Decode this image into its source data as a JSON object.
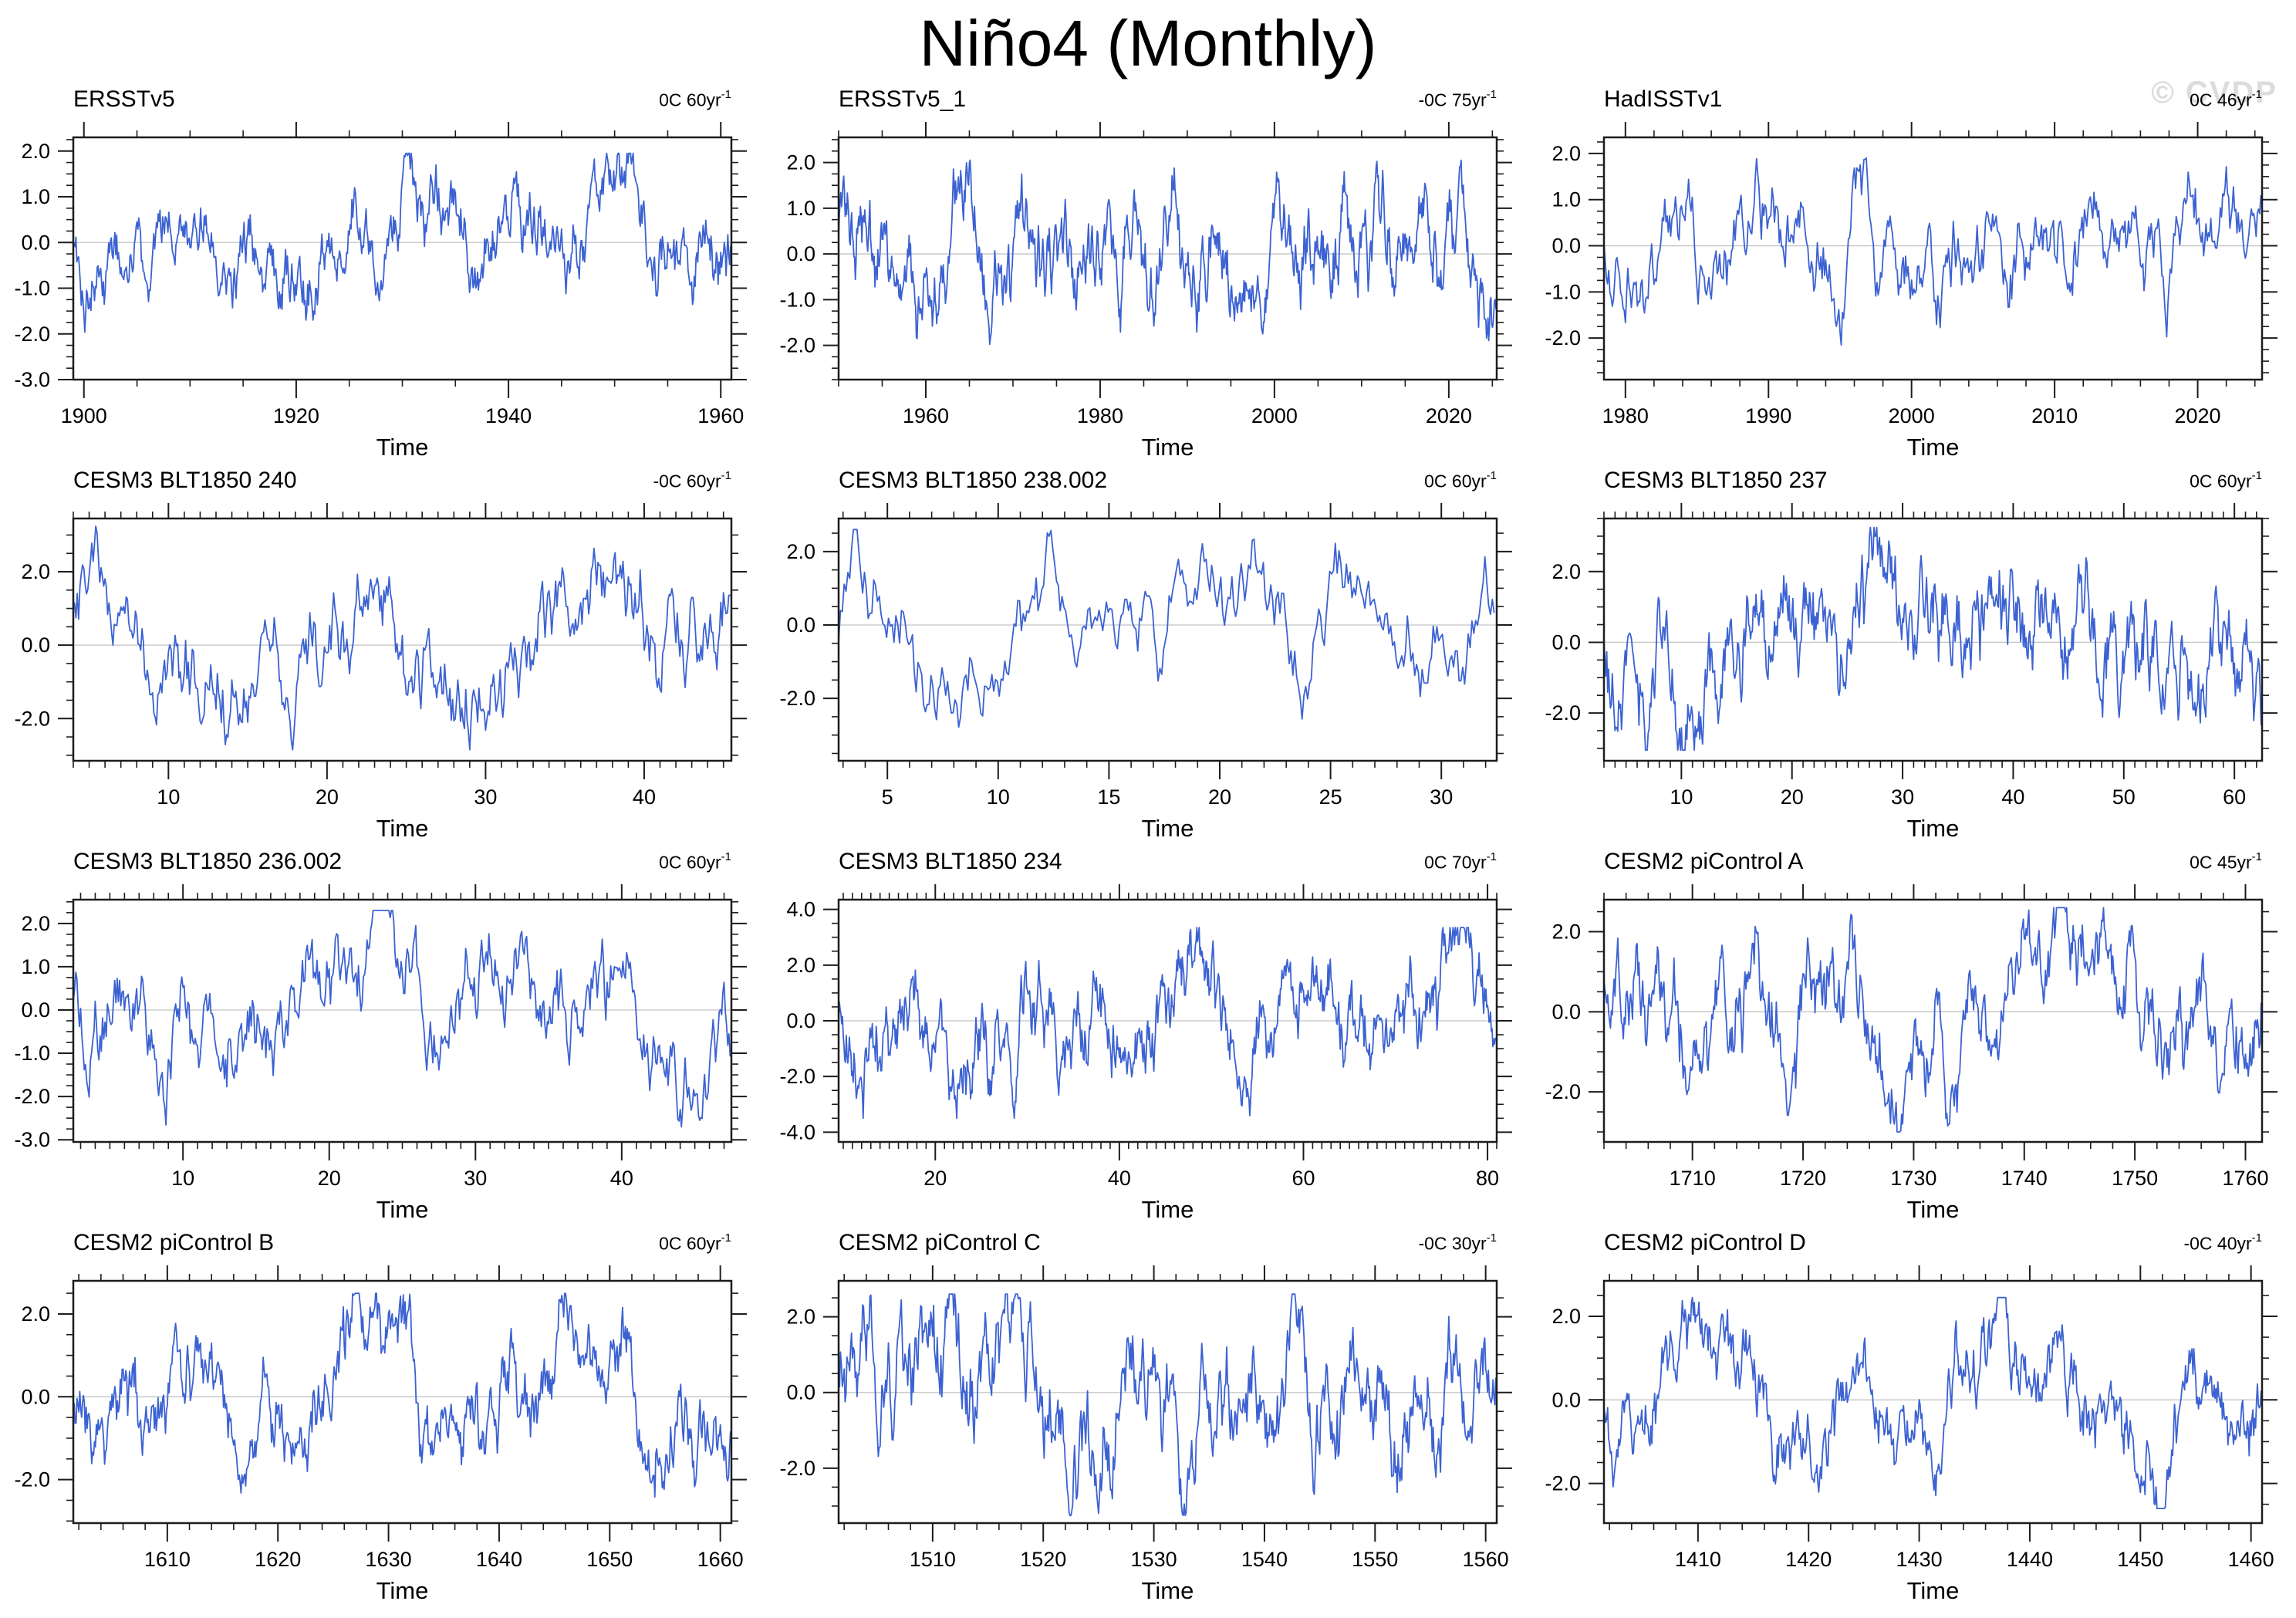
{
  "title": "Niño4 (Monthly)",
  "watermark": "© CVDP",
  "chart_data": {
    "type": "line",
    "layout": {
      "rows": 4,
      "cols": 3,
      "legend": "none",
      "grid": "zero-line-only"
    },
    "line_color": "#3c62d2",
    "zero_line_color": "#c4c4c4",
    "xlabel": "Time",
    "note": "Dense monthly SST anomaly traces; envelope captured by y_range_approx, curve regenerated deterministically from series_seed.",
    "panels": [
      {
        "title": "ERSSTv5",
        "rate": "0C 60yr",
        "rate_exp": "-1",
        "xlim": [
          1899,
          1961
        ],
        "xticks": [
          1900,
          1920,
          1940,
          1960
        ],
        "x_minor_step": 5,
        "ylim": [
          -3.0,
          2.3
        ],
        "yticks": [
          2.0,
          1.0,
          0.0,
          -1.0,
          -2.0,
          -3.0
        ],
        "y_minor_step": 0.25,
        "y_range_approx": [
          -2.6,
          1.95
        ],
        "series_sd": 0.78,
        "series_seed": 101
      },
      {
        "title": "ERSSTv5_1",
        "rate": "-0C 75yr",
        "rate_exp": "-1",
        "xlim": [
          1950,
          2025.5
        ],
        "xticks": [
          1960,
          1980,
          2000,
          2020
        ],
        "x_minor_step": 5,
        "ylim": [
          -2.75,
          2.55
        ],
        "yticks": [
          2.0,
          1.0,
          0.0,
          -1.0,
          -2.0
        ],
        "y_minor_step": 0.25,
        "y_range_approx": [
          -2.35,
          2.05
        ],
        "series_sd": 0.8,
        "series_seed": 102
      },
      {
        "title": "HadISSTv1",
        "rate": "0C 46yr",
        "rate_exp": "-1",
        "xlim": [
          1978.5,
          2024.5
        ],
        "xticks": [
          1980,
          1990,
          2000,
          2010,
          2020
        ],
        "x_minor_step": 2,
        "ylim": [
          -2.9,
          2.35
        ],
        "yticks": [
          2.0,
          1.0,
          0.0,
          -1.0,
          -2.0
        ],
        "y_minor_step": 0.25,
        "y_range_approx": [
          -2.15,
          1.9
        ],
        "series_sd": 0.74,
        "series_seed": 103
      },
      {
        "title": "CESM3 BLT1850 240",
        "rate": "-0C 60yr",
        "rate_exp": "-1",
        "xlim": [
          4,
          45.5
        ],
        "xticks": [
          10,
          20,
          30,
          40
        ],
        "x_minor_step": 1,
        "ylim": [
          -3.15,
          3.45
        ],
        "yticks": [
          2.0,
          0.0,
          -2.0
        ],
        "y_minor_step": 0.5,
        "y_range_approx": [
          -2.85,
          3.3
        ],
        "series_sd": 1.25,
        "series_seed": 104
      },
      {
        "title": "CESM3 BLT1850 238.002",
        "rate": "0C 60yr",
        "rate_exp": "-1",
        "xlim": [
          2.8,
          32.5
        ],
        "xticks": [
          5,
          10,
          15,
          20,
          25,
          30
        ],
        "x_minor_step": 1,
        "ylim": [
          -3.7,
          2.9
        ],
        "yticks": [
          2.0,
          0.0,
          -2.0
        ],
        "y_minor_step": 0.5,
        "y_range_approx": [
          -3.4,
          2.6
        ],
        "series_sd": 1.15,
        "series_seed": 105
      },
      {
        "title": "CESM3 BLT1850 237",
        "rate": "0C 60yr",
        "rate_exp": "-1",
        "xlim": [
          3,
          62.5
        ],
        "xticks": [
          10,
          20,
          30,
          40,
          50,
          60
        ],
        "x_minor_step": 1,
        "ylim": [
          -3.35,
          3.5
        ],
        "yticks": [
          2.0,
          0.0,
          -2.0
        ],
        "y_minor_step": 0.5,
        "y_range_approx": [
          -3.05,
          3.25
        ],
        "series_sd": 1.25,
        "series_seed": 106
      },
      {
        "title": "CESM3 BLT1850 236.002",
        "rate": "0C 60yr",
        "rate_exp": "-1",
        "xlim": [
          2.5,
          47.5
        ],
        "xticks": [
          10,
          20,
          30,
          40
        ],
        "x_minor_step": 1,
        "ylim": [
          -3.05,
          2.55
        ],
        "yticks": [
          2.0,
          1.0,
          0.0,
          -1.0,
          -2.0,
          -3.0
        ],
        "y_minor_step": 0.25,
        "y_range_approx": [
          -2.7,
          2.3
        ],
        "series_sd": 1.1,
        "series_seed": 107
      },
      {
        "title": "CESM3 BLT1850 234",
        "rate": "0C 70yr",
        "rate_exp": "-1",
        "xlim": [
          9.5,
          81
        ],
        "xticks": [
          20,
          40,
          60,
          80
        ],
        "x_minor_step": 1,
        "ylim": [
          -4.35,
          4.35
        ],
        "yticks": [
          4.0,
          2.0,
          0.0,
          -2.0,
          -4.0
        ],
        "y_minor_step": 0.5,
        "y_range_approx": [
          -3.5,
          3.35
        ],
        "series_sd": 1.45,
        "series_seed": 108
      },
      {
        "title": "CESM2 piControl A",
        "rate": "0C 45yr",
        "rate_exp": "-1",
        "xlim": [
          1702,
          1761.5
        ],
        "xticks": [
          1710,
          1720,
          1730,
          1740,
          1750,
          1760
        ],
        "x_minor_step": 2,
        "ylim": [
          -3.25,
          2.8
        ],
        "yticks": [
          2.0,
          0.0,
          -2.0
        ],
        "y_minor_step": 0.5,
        "y_range_approx": [
          -3.0,
          2.6
        ],
        "series_sd": 1.25,
        "series_seed": 109
      },
      {
        "title": "CESM2 piControl B",
        "rate": "0C 60yr",
        "rate_exp": "-1",
        "xlim": [
          1601.5,
          1661
        ],
        "xticks": [
          1610,
          1620,
          1630,
          1640,
          1650,
          1660
        ],
        "x_minor_step": 2,
        "ylim": [
          -3.05,
          2.8
        ],
        "yticks": [
          2.0,
          0.0,
          -2.0
        ],
        "y_minor_step": 0.5,
        "y_range_approx": [
          -2.85,
          2.5
        ],
        "series_sd": 1.15,
        "series_seed": 110
      },
      {
        "title": "CESM2 piControl C",
        "rate": "-0C 30yr",
        "rate_exp": "-1",
        "xlim": [
          1501.5,
          1561
        ],
        "xticks": [
          1510,
          1520,
          1530,
          1540,
          1550,
          1560
        ],
        "x_minor_step": 2,
        "ylim": [
          -3.45,
          2.95
        ],
        "yticks": [
          2.0,
          0.0,
          -2.0
        ],
        "y_minor_step": 0.5,
        "y_range_approx": [
          -3.25,
          2.6
        ],
        "series_sd": 1.3,
        "series_seed": 111
      },
      {
        "title": "CESM2 piControl D",
        "rate": "-0C 40yr",
        "rate_exp": "-1",
        "xlim": [
          1401.5,
          1461
        ],
        "xticks": [
          1410,
          1420,
          1430,
          1440,
          1450,
          1460
        ],
        "x_minor_step": 2,
        "ylim": [
          -2.95,
          2.85
        ],
        "yticks": [
          2.0,
          0.0,
          -2.0
        ],
        "y_minor_step": 0.5,
        "y_range_approx": [
          -2.6,
          2.45
        ],
        "series_sd": 1.15,
        "series_seed": 112
      }
    ]
  }
}
